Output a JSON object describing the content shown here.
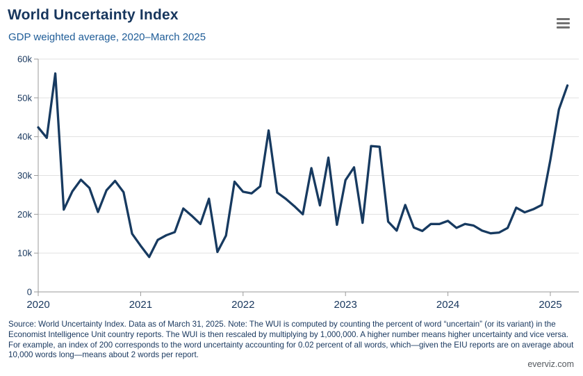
{
  "header": {
    "title": "World Uncertainty Index",
    "subtitle": "GDP weighted average, 2020–March 2025"
  },
  "menu": {
    "icon": "hamburger-menu-icon"
  },
  "chart_data": {
    "type": "line",
    "title": "World Uncertainty Index",
    "subtitle": "GDP weighted average, 2020–March 2025",
    "legend": false,
    "grid": "horizontal",
    "ylim": [
      0,
      60000
    ],
    "y_tick_step": 10000,
    "y_tick_labels": [
      "0",
      "10k",
      "20k",
      "30k",
      "40k",
      "50k",
      "60k"
    ],
    "x_tick_labels": [
      "2020",
      "2021",
      "2022",
      "2023",
      "2024",
      "2025"
    ],
    "line_color": "#173a60",
    "axis_color": "#9a9a9a",
    "gridline_color": "#e0e0e0",
    "label_color": "#17365d",
    "months": [
      "2020-01",
      "2020-02",
      "2020-03",
      "2020-04",
      "2020-05",
      "2020-06",
      "2020-07",
      "2020-08",
      "2020-09",
      "2020-10",
      "2020-11",
      "2020-12",
      "2021-01",
      "2021-02",
      "2021-03",
      "2021-04",
      "2021-05",
      "2021-06",
      "2021-07",
      "2021-08",
      "2021-09",
      "2021-10",
      "2021-11",
      "2021-12",
      "2022-01",
      "2022-02",
      "2022-03",
      "2022-04",
      "2022-05",
      "2022-06",
      "2022-07",
      "2022-08",
      "2022-09",
      "2022-10",
      "2022-11",
      "2022-12",
      "2023-01",
      "2023-02",
      "2023-03",
      "2023-04",
      "2023-05",
      "2023-06",
      "2023-07",
      "2023-08",
      "2023-09",
      "2023-10",
      "2023-11",
      "2023-12",
      "2024-01",
      "2024-02",
      "2024-03",
      "2024-04",
      "2024-05",
      "2024-06",
      "2024-07",
      "2024-08",
      "2024-09",
      "2024-10",
      "2024-11",
      "2024-12",
      "2025-01",
      "2025-02",
      "2025-03"
    ],
    "series": [
      {
        "name": "World Uncertainty Index (GDP weighted average)",
        "values": [
          42400,
          39700,
          56300,
          21200,
          25900,
          28900,
          26800,
          20600,
          26200,
          28600,
          25700,
          15000,
          11900,
          9000,
          13400,
          14600,
          15400,
          21500,
          19600,
          17500,
          24000,
          10300,
          14500,
          28400,
          25800,
          25400,
          27200,
          41600,
          25600,
          24000,
          22100,
          20000,
          31900,
          22300,
          34600,
          17300,
          28800,
          32100,
          17800,
          37600,
          37400,
          18100,
          15800,
          22400,
          16600,
          15700,
          17500,
          17500,
          18300,
          16500,
          17500,
          17100,
          15800,
          15100,
          15300,
          16500,
          21700,
          20500,
          21300,
          22400,
          34000,
          47000,
          53200
        ]
      }
    ]
  },
  "footer": {
    "source_note": "Source: World Uncertainty Index. Data as of March 31, 2025. Note: The WUI is computed by counting the percent of word “uncertain” (or its variant) in the Economist Intelligence Unit country reports. The WUI is then rescaled by multiplying by 1,000,000. A higher number means higher uncertainty and vice versa. For example, an index of 200 corresponds to the word uncertainty accounting for 0.02 percent of all words, which—given the EIU reports are on average about 10,000 words long—means about 2 words per report.",
    "credit": "everviz.com"
  }
}
